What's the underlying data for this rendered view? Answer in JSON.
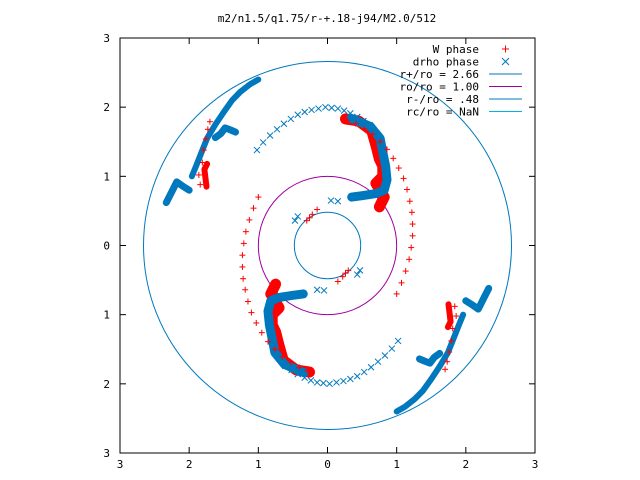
{
  "chart_data": {
    "type": "scatter",
    "title": "m2/n1.5/q1.75/r-+.18-j94/M2.0/512",
    "xlim": [
      -3,
      3
    ],
    "ylim": [
      -3,
      3
    ],
    "x_tick_labels": [
      "3",
      "2",
      "1",
      "0",
      "1",
      "2",
      "3"
    ],
    "y_tick_labels": [
      "3",
      "2",
      "1",
      "0",
      "1",
      "2",
      "3"
    ],
    "x_ticks": [
      -3,
      -2,
      -1,
      0,
      1,
      2,
      3
    ],
    "y_ticks": [
      3,
      2,
      1,
      0,
      -1,
      -2,
      -3
    ],
    "grid": false,
    "legend_position": "top-right",
    "series": [
      {
        "name": "W phase",
        "marker": "plus",
        "color": "#ff0000",
        "points": [
          [
            0.29,
            1.81
          ],
          [
            0.41,
            1.76
          ],
          [
            0.53,
            1.69
          ],
          [
            0.65,
            1.61
          ],
          [
            0.76,
            1.5
          ],
          [
            0.86,
            1.39
          ],
          [
            0.95,
            1.26
          ],
          [
            1.03,
            1.12
          ],
          [
            1.1,
            0.97
          ],
          [
            1.15,
            0.81
          ],
          [
            1.19,
            0.64
          ],
          [
            1.22,
            0.48
          ],
          [
            1.23,
            0.31
          ],
          [
            1.23,
            0.14
          ],
          [
            1.21,
            -0.03
          ],
          [
            1.18,
            -0.2
          ],
          [
            1.13,
            -0.37
          ],
          [
            1.07,
            -0.54
          ],
          [
            1.0,
            -0.7
          ],
          [
            1.84,
            -0.88
          ],
          [
            1.86,
            -1.02
          ],
          [
            1.81,
            -1.2
          ],
          [
            1.79,
            -1.38
          ],
          [
            1.76,
            -1.54
          ],
          [
            1.73,
            -1.68
          ],
          [
            1.7,
            -1.79
          ],
          [
            0.15,
            -0.52
          ],
          [
            0.22,
            -0.45
          ],
          [
            0.26,
            -0.4
          ],
          [
            0.3,
            -0.36
          ],
          [
            -0.29,
            -1.81
          ],
          [
            -0.41,
            -1.76
          ],
          [
            -0.53,
            -1.69
          ],
          [
            -0.65,
            -1.61
          ],
          [
            -0.76,
            -1.5
          ],
          [
            -0.86,
            -1.39
          ],
          [
            -0.95,
            -1.26
          ],
          [
            -1.03,
            -1.12
          ],
          [
            -1.1,
            -0.97
          ],
          [
            -1.15,
            -0.81
          ],
          [
            -1.19,
            -0.64
          ],
          [
            -1.22,
            -0.48
          ],
          [
            -1.23,
            -0.31
          ],
          [
            -1.23,
            -0.14
          ],
          [
            -1.21,
            0.03
          ],
          [
            -1.18,
            0.2
          ],
          [
            -1.13,
            0.37
          ],
          [
            -1.07,
            0.54
          ],
          [
            -1.0,
            0.7
          ],
          [
            -1.84,
            0.88
          ],
          [
            -1.86,
            1.02
          ],
          [
            -1.81,
            1.2
          ],
          [
            -1.79,
            1.38
          ],
          [
            -1.76,
            1.54
          ],
          [
            -1.73,
            1.68
          ],
          [
            -1.7,
            1.79
          ],
          [
            -0.15,
            0.52
          ],
          [
            -0.22,
            0.45
          ],
          [
            -0.26,
            0.4
          ],
          [
            -0.3,
            0.36
          ]
        ]
      },
      {
        "name": "drho phase",
        "marker": "cross",
        "color": "#0078be",
        "points": [
          [
            -0.03,
            2.0
          ],
          [
            0.06,
            1.99
          ],
          [
            0.15,
            1.98
          ],
          [
            0.24,
            1.95
          ],
          [
            0.33,
            1.91
          ],
          [
            0.43,
            1.86
          ],
          [
            0.52,
            1.8
          ],
          [
            0.61,
            1.74
          ],
          [
            -0.13,
            1.98
          ],
          [
            -0.23,
            1.96
          ],
          [
            -0.33,
            1.93
          ],
          [
            -0.43,
            1.89
          ],
          [
            -0.53,
            1.83
          ],
          [
            -0.63,
            1.76
          ],
          [
            -0.73,
            1.68
          ],
          [
            -0.83,
            1.59
          ],
          [
            -0.93,
            1.49
          ],
          [
            -1.02,
            1.38
          ],
          [
            0.03,
            -2.0
          ],
          [
            -0.06,
            -1.99
          ],
          [
            -0.15,
            -1.98
          ],
          [
            -0.24,
            -1.95
          ],
          [
            -0.33,
            -1.91
          ],
          [
            -0.43,
            -1.86
          ],
          [
            -0.52,
            -1.8
          ],
          [
            -0.61,
            -1.74
          ],
          [
            0.13,
            -1.98
          ],
          [
            0.23,
            -1.96
          ],
          [
            0.33,
            -1.93
          ],
          [
            0.43,
            -1.89
          ],
          [
            0.53,
            -1.83
          ],
          [
            0.63,
            -1.76
          ],
          [
            0.73,
            -1.68
          ],
          [
            0.83,
            -1.59
          ],
          [
            0.93,
            -1.49
          ],
          [
            1.02,
            -1.38
          ],
          [
            -0.43,
            0.42
          ],
          [
            -0.47,
            0.36
          ],
          [
            0.43,
            -0.42
          ],
          [
            0.47,
            -0.36
          ],
          [
            0.05,
            0.65
          ],
          [
            0.15,
            0.64
          ],
          [
            -0.05,
            -0.65
          ],
          [
            -0.15,
            -0.64
          ]
        ]
      }
    ],
    "curves": [
      {
        "name": "W phase",
        "marker": "plus",
        "color": "#ff0000",
        "width": 11,
        "path": [
          [
            0.26,
            1.83
          ],
          [
            0.45,
            1.8
          ],
          [
            0.64,
            1.66
          ],
          [
            0.7,
            1.45
          ],
          [
            0.75,
            1.25
          ],
          [
            0.8,
            1.15
          ],
          [
            0.8,
            1.0
          ],
          [
            0.7,
            0.9
          ],
          [
            0.82,
            0.7
          ],
          [
            0.75,
            0.56
          ]
        ]
      },
      {
        "name": "W phase",
        "marker": "plus",
        "color": "#ff0000",
        "width": 11,
        "path": [
          [
            -0.26,
            -1.83
          ],
          [
            -0.45,
            -1.8
          ],
          [
            -0.64,
            -1.66
          ],
          [
            -0.7,
            -1.45
          ],
          [
            -0.75,
            -1.25
          ],
          [
            -0.8,
            -1.15
          ],
          [
            -0.8,
            -1.0
          ],
          [
            -0.7,
            -0.9
          ],
          [
            -0.82,
            -0.7
          ],
          [
            -0.75,
            -0.56
          ]
        ]
      },
      {
        "name": "drho phase",
        "marker": "cross",
        "color": "#0078be",
        "width": 9,
        "path": [
          [
            0.34,
            1.84
          ],
          [
            0.62,
            1.72
          ],
          [
            0.76,
            1.55
          ],
          [
            0.8,
            1.35
          ],
          [
            0.84,
            1.15
          ],
          [
            0.86,
            0.95
          ],
          [
            0.82,
            0.8
          ],
          [
            0.7,
            0.75
          ],
          [
            0.5,
            0.72
          ],
          [
            0.35,
            0.7
          ]
        ]
      },
      {
        "name": "drho phase",
        "marker": "cross",
        "color": "#0078be",
        "width": 9,
        "path": [
          [
            -0.34,
            -1.84
          ],
          [
            -0.62,
            -1.72
          ],
          [
            -0.76,
            -1.55
          ],
          [
            -0.8,
            -1.35
          ],
          [
            -0.84,
            -1.15
          ],
          [
            -0.86,
            -0.95
          ],
          [
            -0.82,
            -0.8
          ],
          [
            -0.7,
            -0.75
          ],
          [
            -0.5,
            -0.72
          ],
          [
            -0.35,
            -0.7
          ]
        ]
      },
      {
        "name": "drho phase",
        "marker": "cross",
        "color": "#0078be",
        "width": 7,
        "path": [
          [
            -2.33,
            0.62
          ],
          [
            -2.26,
            0.76
          ],
          [
            -2.18,
            0.92
          ],
          [
            -2.08,
            0.85
          ],
          [
            -2.0,
            0.8
          ]
        ]
      },
      {
        "name": "drho phase",
        "marker": "cross",
        "color": "#0078be",
        "width": 7,
        "path": [
          [
            -1.62,
            1.56
          ],
          [
            -1.54,
            1.62
          ],
          [
            -1.48,
            1.7
          ],
          [
            -1.4,
            1.67
          ],
          [
            -1.33,
            1.64
          ]
        ]
      },
      {
        "name": "drho phase",
        "marker": "cross",
        "color": "#0078be",
        "width": 6,
        "path": [
          [
            -1.96,
            1.0
          ],
          [
            -1.9,
            1.15
          ],
          [
            -1.82,
            1.35
          ],
          [
            -1.74,
            1.55
          ],
          [
            -1.62,
            1.75
          ],
          [
            -1.5,
            1.93
          ],
          [
            -1.38,
            2.1
          ],
          [
            -1.26,
            2.22
          ],
          [
            -1.12,
            2.33
          ],
          [
            -1.0,
            2.4
          ]
        ]
      },
      {
        "name": "drho phase",
        "marker": "cross",
        "color": "#0078be",
        "width": 7,
        "path": [
          [
            2.33,
            -0.62
          ],
          [
            2.26,
            -0.76
          ],
          [
            2.18,
            -0.92
          ],
          [
            2.08,
            -0.85
          ],
          [
            2.0,
            -0.8
          ]
        ]
      },
      {
        "name": "drho phase",
        "marker": "cross",
        "color": "#0078be",
        "width": 7,
        "path": [
          [
            1.62,
            -1.56
          ],
          [
            1.54,
            -1.62
          ],
          [
            1.48,
            -1.7
          ],
          [
            1.4,
            -1.67
          ],
          [
            1.33,
            -1.64
          ]
        ]
      },
      {
        "name": "drho phase",
        "marker": "cross",
        "color": "#0078be",
        "width": 6,
        "path": [
          [
            1.96,
            -1.0
          ],
          [
            1.9,
            -1.15
          ],
          [
            1.82,
            -1.35
          ],
          [
            1.74,
            -1.55
          ],
          [
            1.62,
            -1.75
          ],
          [
            1.5,
            -1.93
          ],
          [
            1.38,
            -2.1
          ],
          [
            1.26,
            -2.22
          ],
          [
            1.12,
            -2.33
          ],
          [
            1.0,
            -2.4
          ]
        ]
      },
      {
        "name": "W phase",
        "marker": "plus",
        "color": "#ff0000",
        "width": 6,
        "path": [
          [
            -1.75,
            0.85
          ],
          [
            -1.78,
            1.1
          ],
          [
            -1.74,
            1.18
          ]
        ]
      },
      {
        "name": "W phase",
        "marker": "plus",
        "color": "#ff0000",
        "width": 6,
        "path": [
          [
            1.75,
            -0.85
          ],
          [
            1.78,
            -1.1
          ],
          [
            1.74,
            -1.18
          ]
        ]
      }
    ],
    "circles": [
      {
        "name": "r+/ro = 2.66",
        "r": 2.66,
        "color": "#0078be"
      },
      {
        "name": "ro/ro = 1.00",
        "r": 1.0,
        "color": "#a000a0"
      },
      {
        "name": "r-/ro = .48",
        "r": 0.48,
        "color": "#0078be"
      },
      {
        "name": "rc/ro = NaN",
        "r": null,
        "color": "#00b4e6"
      }
    ],
    "legend": [
      {
        "label": "W phase",
        "kind": "plus",
        "color": "#ff0000"
      },
      {
        "label": "drho phase",
        "kind": "cross",
        "color": "#0078be"
      },
      {
        "label": "r+/ro = 2.66",
        "kind": "line",
        "color": "#0078be"
      },
      {
        "label": "ro/ro = 1.00",
        "kind": "line",
        "color": "#a000a0"
      },
      {
        "label": "r-/ro = .48",
        "kind": "line",
        "color": "#0078be"
      },
      {
        "label": "rc/ro = NaN",
        "kind": "line",
        "color": "#00b4e6"
      }
    ]
  }
}
